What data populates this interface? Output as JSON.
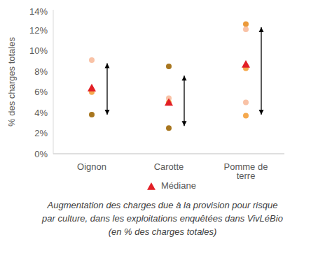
{
  "chart_data": {
    "type": "scatter",
    "y_label": "% des charges totales",
    "caption": [
      "Augmentation des charges due à la provision pour risque",
      "par culture, dans les exploitations enquêtées dans VivLéBio",
      "(en % des charges totales)"
    ],
    "categories": [
      "Oignon",
      "Carotte",
      "Pomme de terre"
    ],
    "points": [
      [
        {
          "value": 9.1,
          "color": "#f9c2a6"
        },
        {
          "value": 6,
          "color": "#f5a94e"
        },
        {
          "value": 3.8,
          "color": "#a8761f"
        }
      ],
      [
        {
          "value": 8.5,
          "color": "#a8761f"
        },
        {
          "value": 5.4,
          "color": "#f9c2a6"
        },
        {
          "value": 5,
          "color": "#f5a94e"
        },
        {
          "value": 2.5,
          "color": "#a8761f"
        }
      ],
      [
        {
          "value": 12.6,
          "color": "#eb9a3a"
        },
        {
          "value": 12.1,
          "color": "#f9c2a6"
        },
        {
          "value": 8.3,
          "color": "#f5a94e"
        },
        {
          "value": 5,
          "color": "#f9c2a6"
        },
        {
          "value": 3.7,
          "color": "#f5a94e"
        }
      ]
    ],
    "median": {
      "name": "Médiane",
      "color": "#e21f26",
      "marker": "triangle",
      "values": [
        6.4,
        5,
        8.7
      ]
    },
    "ranges": {
      "low": [
        3.8,
        2.7,
        3.8
      ],
      "high": [
        8.8,
        7.6,
        12.3
      ],
      "color": "#000000"
    },
    "ylim": [
      0,
      14
    ],
    "yticks": [
      {
        "value": 0,
        "label": "0%"
      },
      {
        "value": 2,
        "label": "2%"
      },
      {
        "value": 4,
        "label": "4%"
      },
      {
        "value": 6,
        "label": "6%"
      },
      {
        "value": 8,
        "label": "8%"
      },
      {
        "value": 10,
        "label": "10%"
      },
      {
        "value": 12,
        "label": "12%"
      },
      {
        "value": 14,
        "label": "14%"
      }
    ],
    "grid": false
  }
}
